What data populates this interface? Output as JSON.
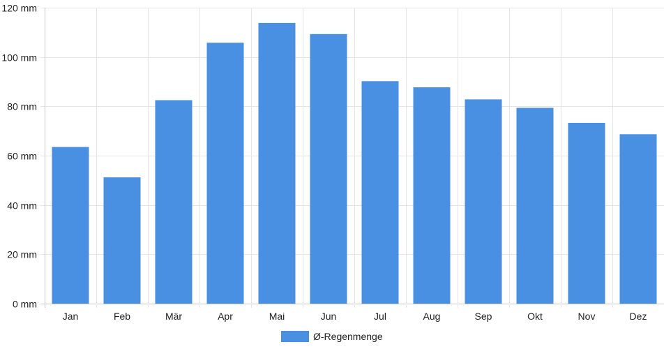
{
  "chart_data": {
    "type": "bar",
    "categories": [
      "Jan",
      "Feb",
      "Mär",
      "Apr",
      "Mai",
      "Jun",
      "Jul",
      "Aug",
      "Sep",
      "Okt",
      "Nov",
      "Dez"
    ],
    "series": [
      {
        "name": "Ø-Regenmenge",
        "values": [
          63.5,
          51.2,
          82.5,
          105.8,
          113.8,
          109.3,
          90.2,
          87.7,
          82.8,
          79.4,
          73.3,
          68.7
        ],
        "color": "#4a90e2"
      }
    ],
    "y_ticks": [
      "0 mm",
      "20 mm",
      "40 mm",
      "60 mm",
      "80 mm",
      "100 mm",
      "120 mm"
    ],
    "ylim": [
      0,
      120
    ],
    "grid": true,
    "legend_position": "bottom-center"
  }
}
